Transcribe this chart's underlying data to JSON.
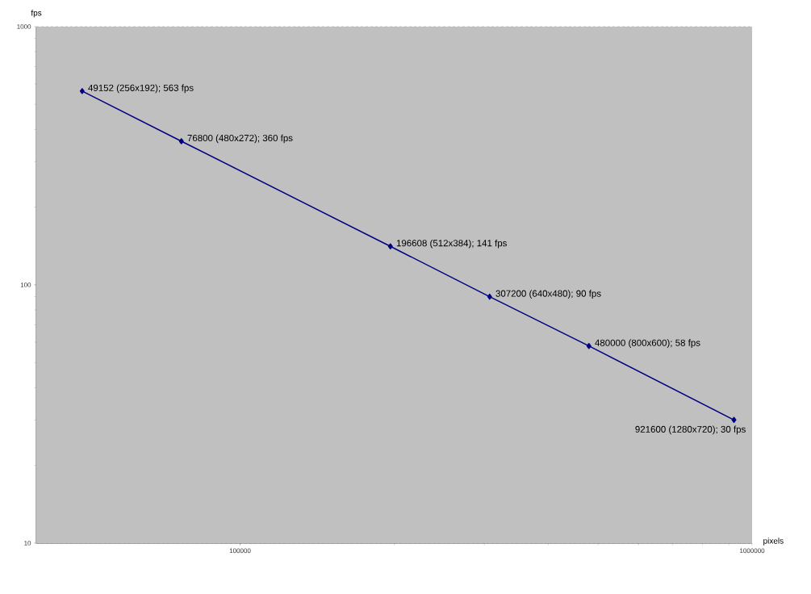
{
  "chart_data": {
    "type": "line",
    "xlabel": "pixels",
    "ylabel": "fps",
    "x": [
      49152,
      76800,
      196608,
      307200,
      480000,
      921600
    ],
    "values": [
      563,
      360,
      141,
      90,
      58,
      30
    ],
    "value_labels": [
      "49152 (256x192); 563 fps",
      "76800 (480x272); 360 fps",
      "196608 (512x384); 141 fps",
      "307200 (640x480); 90 fps",
      "480000 (800x600); 58 fps",
      "921600 (1280x720); 30 fps"
    ],
    "color": "#000080",
    "marker": "diamond",
    "line_style": "solid",
    "log": "xy",
    "xlim": [
      40000,
      1000000
    ],
    "ylim": [
      10,
      1000
    ],
    "xticks": [
      100000,
      1000000
    ],
    "yticks": [
      10,
      100,
      1000
    ],
    "grid": "y"
  }
}
